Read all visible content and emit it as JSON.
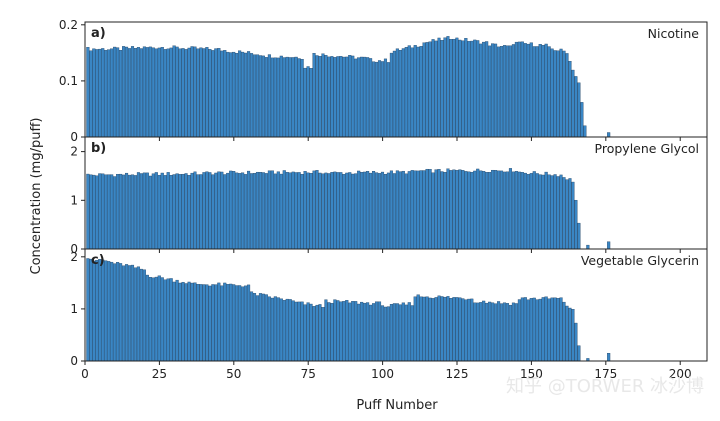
{
  "watermark": "知乎 @TORWER 冰沙博",
  "chart_data": {
    "type": "bar",
    "bar_color": "#3a86c4",
    "bar_edge_color": "#1d3c5c",
    "grid": false,
    "legend": "none",
    "xlabel": "Puff Number",
    "ylabel": "Concentration (mg/puff)",
    "xlim": [
      0,
      209
    ],
    "xticks": [
      0,
      25,
      50,
      75,
      100,
      125,
      150,
      175,
      200
    ],
    "panels": [
      {
        "panel_label": "a)",
        "series_name": "Nicotine",
        "ylim": [
          0,
          0.205
        ],
        "yticks": [
          0,
          0.1,
          0.2
        ],
        "yticklabels": [
          "0",
          "0.1",
          "0.2"
        ],
        "segments": [
          {
            "from": 1,
            "to": 12,
            "start": 0.157,
            "end": 0.157
          },
          {
            "from": 13,
            "to": 25,
            "start": 0.158,
            "end": 0.16
          },
          {
            "from": 26,
            "to": 45,
            "start": 0.16,
            "end": 0.156
          },
          {
            "from": 46,
            "to": 60,
            "start": 0.155,
            "end": 0.147
          },
          {
            "from": 61,
            "to": 73,
            "start": 0.145,
            "end": 0.142
          },
          {
            "from": 74,
            "to": 76,
            "start": 0.125,
            "end": 0.125
          },
          {
            "from": 77,
            "to": 95,
            "start": 0.148,
            "end": 0.14
          },
          {
            "from": 96,
            "to": 102,
            "start": 0.137,
            "end": 0.136
          },
          {
            "from": 103,
            "to": 113,
            "start": 0.152,
            "end": 0.165
          },
          {
            "from": 114,
            "to": 124,
            "start": 0.168,
            "end": 0.178
          },
          {
            "from": 125,
            "to": 135,
            "start": 0.175,
            "end": 0.168
          },
          {
            "from": 136,
            "to": 143,
            "start": 0.165,
            "end": 0.16
          },
          {
            "from": 144,
            "to": 155,
            "start": 0.168,
            "end": 0.163
          },
          {
            "from": 156,
            "to": 162,
            "start": 0.158,
            "end": 0.152
          },
          {
            "from": 163,
            "to": 166,
            "start": 0.135,
            "end": 0.095
          },
          {
            "from": 167,
            "to": 168,
            "start": 0.06,
            "end": 0.02
          }
        ],
        "extra": [
          {
            "x": 176,
            "y": 0.008
          }
        ]
      },
      {
        "panel_label": "b)",
        "series_name": "Propylene Glycol",
        "ylim": [
          0,
          2.3
        ],
        "yticks": [
          0,
          1,
          2
        ],
        "yticklabels": [
          "0",
          "1",
          "2"
        ],
        "segments": [
          {
            "from": 1,
            "to": 40,
            "start": 1.52,
            "end": 1.55
          },
          {
            "from": 41,
            "to": 80,
            "start": 1.56,
            "end": 1.58
          },
          {
            "from": 81,
            "to": 110,
            "start": 1.56,
            "end": 1.58
          },
          {
            "from": 111,
            "to": 145,
            "start": 1.6,
            "end": 1.62
          },
          {
            "from": 146,
            "to": 160,
            "start": 1.58,
            "end": 1.52
          },
          {
            "from": 161,
            "to": 164,
            "start": 1.48,
            "end": 1.4
          },
          {
            "from": 165,
            "to": 166,
            "start": 1.0,
            "end": 0.5
          }
        ],
        "extra": [
          {
            "x": 169,
            "y": 0.08
          },
          {
            "x": 176,
            "y": 0.15
          }
        ]
      },
      {
        "panel_label": "c)",
        "series_name": "Vegetable Glycerin",
        "ylim": [
          0,
          2.15
        ],
        "yticks": [
          0,
          1,
          2
        ],
        "yticklabels": [
          "0",
          "1",
          "2"
        ],
        "segments": [
          {
            "from": 1,
            "to": 4,
            "start": 2.0,
            "end": 1.9
          },
          {
            "from": 5,
            "to": 12,
            "start": 1.95,
            "end": 1.85
          },
          {
            "from": 13,
            "to": 20,
            "start": 1.85,
            "end": 1.75
          },
          {
            "from": 21,
            "to": 35,
            "start": 1.65,
            "end": 1.5
          },
          {
            "from": 36,
            "to": 55,
            "start": 1.48,
            "end": 1.45
          },
          {
            "from": 56,
            "to": 70,
            "start": 1.3,
            "end": 1.15
          },
          {
            "from": 71,
            "to": 80,
            "start": 1.12,
            "end": 1.05
          },
          {
            "from": 81,
            "to": 100,
            "start": 1.15,
            "end": 1.1
          },
          {
            "from": 101,
            "to": 110,
            "start": 1.05,
            "end": 1.1
          },
          {
            "from": 111,
            "to": 130,
            "start": 1.25,
            "end": 1.2
          },
          {
            "from": 131,
            "to": 145,
            "start": 1.15,
            "end": 1.1
          },
          {
            "from": 146,
            "to": 160,
            "start": 1.2,
            "end": 1.2
          },
          {
            "from": 161,
            "to": 164,
            "start": 1.1,
            "end": 1.0
          },
          {
            "from": 165,
            "to": 166,
            "start": 0.7,
            "end": 0.3
          }
        ],
        "extra": [
          {
            "x": 169,
            "y": 0.05
          },
          {
            "x": 176,
            "y": 0.15
          }
        ]
      }
    ]
  }
}
